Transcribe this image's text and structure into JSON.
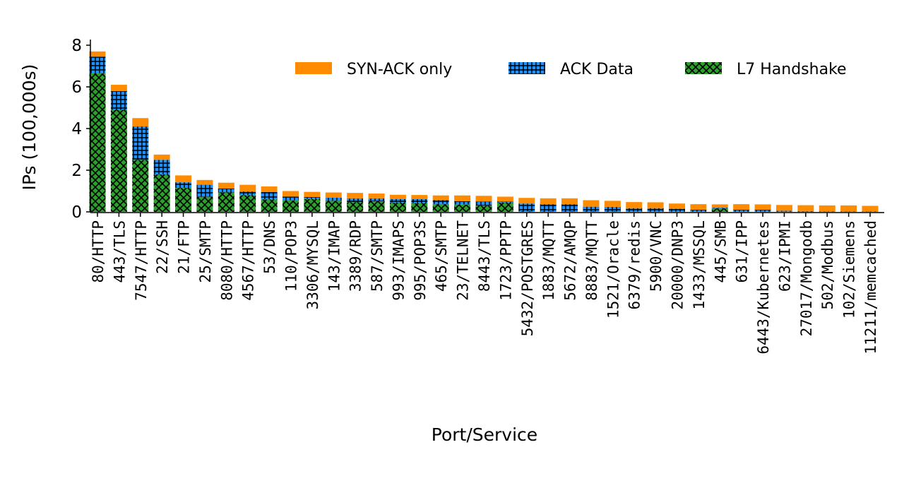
{
  "chart_data": {
    "type": "bar",
    "stacked": true,
    "title": "",
    "xlabel": "Port/Service",
    "ylabel": "IPs (100,000s)",
    "ylim": [
      0,
      8
    ],
    "yticks": [
      0,
      2,
      4,
      6,
      8
    ],
    "grid": false,
    "legend_position": "top-right",
    "categories": [
      "80/HTTP",
      "443/TLS",
      "7547/HTTP",
      "22/SSH",
      "21/FTP",
      "25/SMTP",
      "8080/HTTP",
      "4567/HTTP",
      "53/DNS",
      "110/POP3",
      "3306/MYSQL",
      "143/IMAP",
      "3389/RDP",
      "587/SMTP",
      "993/IMAPS",
      "995/POP3S",
      "465/SMTP",
      "23/TELNET",
      "8443/TLS",
      "1723/PPTP",
      "5432/POSTGRES",
      "1883/MQTT",
      "5672/AMQP",
      "8883/MQTT",
      "1521/Oracle",
      "6379/redis",
      "5900/VNC",
      "20000/DNP3",
      "1433/MSSQL",
      "445/SMB",
      "631/IPP",
      "6443/Kubernetes",
      "623/IPMI",
      "27017/Mongodb",
      "502/Modbus",
      "102/Siemens",
      "11211/memcached"
    ],
    "series": [
      {
        "name": "L7 Handshake",
        "color": "#2ca02c",
        "pattern": "crosshatch",
        "values": [
          6.65,
          4.9,
          2.5,
          1.8,
          1.15,
          0.72,
          0.93,
          0.8,
          0.6,
          0.55,
          0.62,
          0.53,
          0.47,
          0.51,
          0.45,
          0.42,
          0.38,
          0.35,
          0.3,
          0.45,
          0.03,
          0.02,
          0.02,
          0.02,
          0.02,
          0.01,
          0.01,
          0.01,
          0.01,
          0.17,
          0.01,
          0.01,
          0.01,
          0.01,
          0.01,
          0.01,
          0.01
        ]
      },
      {
        "name": "ACK Data",
        "color": "#1e90ff",
        "pattern": "grid",
        "values": [
          0.8,
          0.9,
          1.6,
          0.7,
          0.27,
          0.58,
          0.19,
          0.18,
          0.35,
          0.18,
          0.09,
          0.15,
          0.18,
          0.14,
          0.17,
          0.19,
          0.19,
          0.16,
          0.2,
          0.05,
          0.37,
          0.35,
          0.35,
          0.23,
          0.22,
          0.17,
          0.17,
          0.14,
          0.09,
          0.03,
          0.09,
          0.09,
          0.04,
          0.03,
          0.02,
          0.02,
          0.02
        ]
      },
      {
        "name": "SYN-ACK only",
        "color": "#ff8c00",
        "pattern": "solid",
        "values": [
          0.25,
          0.3,
          0.4,
          0.25,
          0.33,
          0.23,
          0.28,
          0.32,
          0.27,
          0.27,
          0.25,
          0.25,
          0.26,
          0.23,
          0.2,
          0.2,
          0.22,
          0.28,
          0.27,
          0.23,
          0.27,
          0.28,
          0.28,
          0.31,
          0.29,
          0.29,
          0.28,
          0.25,
          0.27,
          0.16,
          0.27,
          0.26,
          0.28,
          0.28,
          0.28,
          0.28,
          0.26
        ]
      }
    ],
    "legend_order": [
      "SYN-ACK only",
      "ACK Data",
      "L7 Handshake"
    ]
  }
}
